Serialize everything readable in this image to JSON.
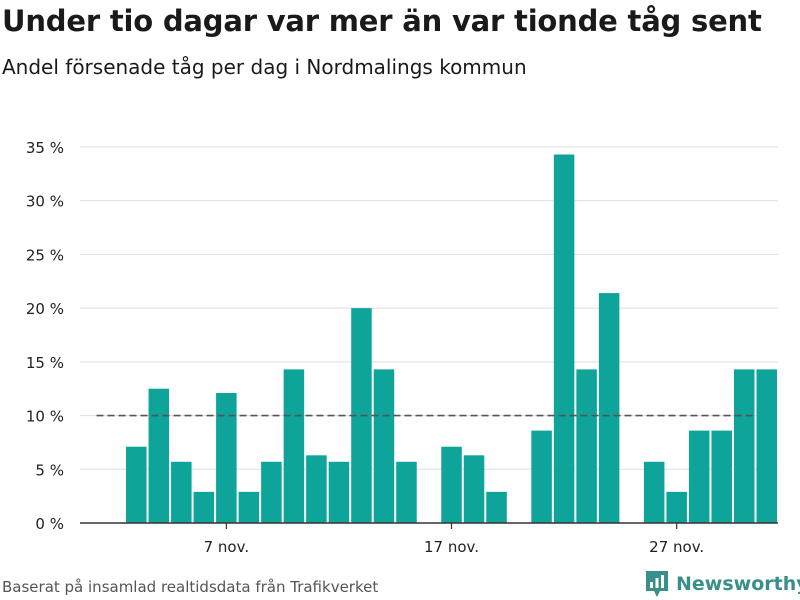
{
  "header": {
    "title": "Under tio dagar var mer än var tionde tåg sent",
    "subtitle": "Andel försenade tåg per dag i Nordmalings kommun"
  },
  "footer": {
    "source": "Baserat på insamlad realtidsdata från Trafikverket",
    "brand": "Newsworthy"
  },
  "colors": {
    "bar": "#0ea49a",
    "grid": "#dddddd",
    "axis": "#333333",
    "reference_line": "#555555",
    "brand": "#3a8f8a"
  },
  "chart_data": {
    "type": "bar",
    "title": "Under tio dagar var mer än var tionde tåg sent",
    "subtitle": "Andel försenade tåg per dag i Nordmalings kommun",
    "x_tick_labels": [
      {
        "day": 7,
        "label": "7 nov."
      },
      {
        "day": 17,
        "label": "17 nov."
      },
      {
        "day": 27,
        "label": "27 nov."
      }
    ],
    "y_ticks": [
      {
        "value": 0,
        "label": "0 %"
      },
      {
        "value": 5,
        "label": "5 %"
      },
      {
        "value": 10,
        "label": "10 %"
      },
      {
        "value": 15,
        "label": "15 %"
      },
      {
        "value": 20,
        "label": "20 %"
      },
      {
        "value": 25,
        "label": "25 %"
      },
      {
        "value": 30,
        "label": "30 %"
      },
      {
        "value": 35,
        "label": "35 %"
      }
    ],
    "ylim": [
      0,
      35
    ],
    "xlim": [
      0.5,
      31.5
    ],
    "grid": true,
    "reference_line": {
      "value": 10,
      "from_day": 2,
      "to_day": 30,
      "style": "dashed"
    },
    "unit": "%",
    "series": [
      {
        "points": [
          {
            "day": 3,
            "value": 7.1
          },
          {
            "day": 4,
            "value": 12.5
          },
          {
            "day": 5,
            "value": 5.7
          },
          {
            "day": 6,
            "value": 2.9
          },
          {
            "day": 7,
            "value": 12.1
          },
          {
            "day": 8,
            "value": 2.9
          },
          {
            "day": 9,
            "value": 5.7
          },
          {
            "day": 10,
            "value": 14.3
          },
          {
            "day": 11,
            "value": 6.3
          },
          {
            "day": 12,
            "value": 5.7
          },
          {
            "day": 13,
            "value": 20.0
          },
          {
            "day": 14,
            "value": 14.3
          },
          {
            "day": 15,
            "value": 5.7
          },
          {
            "day": 17,
            "value": 7.1
          },
          {
            "day": 18,
            "value": 6.3
          },
          {
            "day": 19,
            "value": 2.9
          },
          {
            "day": 21,
            "value": 8.6
          },
          {
            "day": 22,
            "value": 34.3
          },
          {
            "day": 23,
            "value": 14.3
          },
          {
            "day": 24,
            "value": 21.4
          },
          {
            "day": 26,
            "value": 5.7
          },
          {
            "day": 27,
            "value": 2.9
          },
          {
            "day": 28,
            "value": 8.6
          },
          {
            "day": 29,
            "value": 8.6
          },
          {
            "day": 30,
            "value": 14.3
          },
          {
            "day": 31,
            "value": 14.3
          }
        ]
      }
    ]
  }
}
